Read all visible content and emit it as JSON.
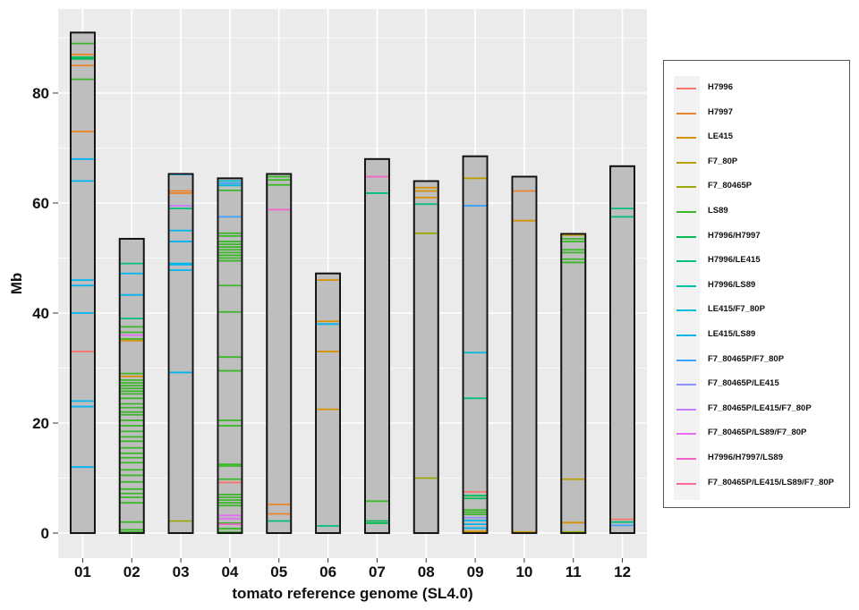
{
  "chart_data": {
    "type": "bar",
    "subtype": "chromosome-ideogram",
    "title": "",
    "xlabel": "tomato reference genome (SL4.0)",
    "ylabel": "Mb",
    "ylim": [
      -4.5,
      95.5
    ],
    "yticks": [
      0,
      20,
      40,
      60,
      80
    ],
    "grid": true,
    "legend_position": "right",
    "categories": [
      "01",
      "02",
      "03",
      "04",
      "05",
      "06",
      "07",
      "08",
      "09",
      "10",
      "11",
      "12"
    ],
    "chromosome_lengths": [
      91.0,
      53.5,
      65.3,
      64.5,
      65.3,
      47.2,
      68.0,
      64.0,
      68.5,
      64.8,
      54.4,
      66.7
    ],
    "legend": [
      {
        "name": "H7996",
        "color": "#F8766D"
      },
      {
        "name": "H7997",
        "color": "#E9842C"
      },
      {
        "name": "LE415",
        "color": "#D69100"
      },
      {
        "name": "F7_80P",
        "color": "#BC9D00"
      },
      {
        "name": "F7_80465P",
        "color": "#9CA700"
      },
      {
        "name": "LS89",
        "color": "#3CB72A"
      },
      {
        "name": "H7996/H7997",
        "color": "#00BA54"
      },
      {
        "name": "H7996/LE415",
        "color": "#00BE7D"
      },
      {
        "name": "H7996/LS89",
        "color": "#00C0A7"
      },
      {
        "name": "LE415/F7_80P",
        "color": "#00BCD8"
      },
      {
        "name": "LE415/LS89",
        "color": "#00B4EF"
      },
      {
        "name": "F7_80465P/F7_80P",
        "color": "#3DA1FF"
      },
      {
        "name": "F7_80465P/LE415",
        "color": "#8B93FF"
      },
      {
        "name": "F7_80465P/LE415/F7_80P",
        "color": "#C77CFF"
      },
      {
        "name": "F7_80465P/LS89/F7_80P",
        "color": "#E76BF3"
      },
      {
        "name": "H7996/H7997/LS89",
        "color": "#F264C7"
      },
      {
        "name": "F7_80465P/LE415/LS89/F7_80P",
        "color": "#FF6A98"
      }
    ],
    "markers": [
      {
        "chr": "01",
        "group": "LS89",
        "pos": [
          89.0,
          82.5
        ]
      },
      {
        "chr": "01",
        "group": "H7996/H7997",
        "pos": [
          86.5,
          86.2
        ]
      },
      {
        "chr": "01",
        "group": "H7997",
        "pos": [
          87.0,
          85.0,
          73.0
        ]
      },
      {
        "chr": "01",
        "group": "LE415/LS89",
        "pos": [
          68.0,
          64.0,
          46.0,
          45.0,
          40.0,
          24.0,
          23.0,
          12.0
        ]
      },
      {
        "chr": "01",
        "group": "H7996",
        "pos": [
          33.0
        ]
      },
      {
        "chr": "02",
        "group": "H7996/LE415",
        "pos": [
          49.0,
          39.0
        ]
      },
      {
        "chr": "02",
        "group": "LE415/LS89",
        "pos": [
          47.2,
          43.3
        ]
      },
      {
        "chr": "02",
        "group": "LS89",
        "pos": [
          37.5,
          36.5,
          35.3,
          29.0,
          27.8,
          27.3,
          26.8,
          26.3,
          25.8,
          25.3,
          24.5,
          23.5,
          22.8,
          22.0,
          21.5,
          20.5,
          19.5,
          18.5,
          17.5,
          16.7,
          15.5,
          14.5,
          13.7,
          12.8,
          11.5,
          10.5,
          9.3,
          8.0,
          7.2,
          6.5,
          5.5,
          2.0,
          0.6,
          0.2
        ]
      },
      {
        "chr": "02",
        "group": "F7_80465P/LS89/F7_80P",
        "pos": [
          36.0
        ]
      },
      {
        "chr": "02",
        "group": "LE415",
        "pos": [
          35.0,
          28.5
        ]
      },
      {
        "chr": "03",
        "group": "LE415/LS89",
        "pos": [
          65.2,
          55.0,
          53.0,
          49.0,
          48.8,
          47.8,
          29.2
        ]
      },
      {
        "chr": "03",
        "group": "H7997",
        "pos": [
          62.2,
          61.8
        ]
      },
      {
        "chr": "03",
        "group": "F7_80465P/LE415/F7_80P",
        "pos": [
          59.5
        ]
      },
      {
        "chr": "03",
        "group": "H7996/LE415",
        "pos": [
          59.0
        ]
      },
      {
        "chr": "03",
        "group": "F7_80465P",
        "pos": [
          2.2
        ]
      },
      {
        "chr": "04",
        "group": "LE415/F7_80P",
        "pos": [
          64.0,
          63.2
        ]
      },
      {
        "chr": "04",
        "group": "F7_80465P/F7_80P",
        "pos": [
          63.6,
          57.5
        ]
      },
      {
        "chr": "04",
        "group": "LS89",
        "pos": [
          62.3,
          54.5,
          54.0,
          53.0,
          52.5,
          52.0,
          51.5,
          51.0,
          50.5,
          50.0,
          49.5,
          45.0,
          40.2,
          32.0,
          29.5,
          20.5,
          19.5,
          12.5,
          12.2,
          9.8,
          7.0,
          6.5,
          6.0,
          5.5,
          5.0,
          1.8,
          0.8,
          0.2
        ]
      },
      {
        "chr": "04",
        "group": "H7996",
        "pos": [
          9.2
        ]
      },
      {
        "chr": "04",
        "group": "F7_80465P/LS89/F7_80P",
        "pos": [
          3.2,
          2.6
        ]
      },
      {
        "chr": "04",
        "group": "H7996/H7997/LS89",
        "pos": [
          1.6
        ]
      },
      {
        "chr": "05",
        "group": "LS89",
        "pos": [
          64.8,
          64.2,
          63.3
        ]
      },
      {
        "chr": "05",
        "group": "H7996/H7997/LS89",
        "pos": [
          58.8
        ]
      },
      {
        "chr": "05",
        "group": "H7997",
        "pos": [
          5.2,
          3.5
        ]
      },
      {
        "chr": "05",
        "group": "H7996/LE415",
        "pos": [
          2.2
        ]
      },
      {
        "chr": "06",
        "group": "LE415",
        "pos": [
          46.0,
          38.5,
          33.0,
          22.5
        ]
      },
      {
        "chr": "06",
        "group": "LE415/LS89",
        "pos": [
          38.0
        ]
      },
      {
        "chr": "06",
        "group": "H7996/LE415",
        "pos": [
          1.3
        ]
      },
      {
        "chr": "07",
        "group": "H7996/H7997/LS89",
        "pos": [
          64.8
        ]
      },
      {
        "chr": "07",
        "group": "H7996/LE415",
        "pos": [
          61.8
        ]
      },
      {
        "chr": "07",
        "group": "LS89",
        "pos": [
          5.8
        ]
      },
      {
        "chr": "07",
        "group": "H7996/H7997",
        "pos": [
          2.2,
          1.8
        ]
      },
      {
        "chr": "08",
        "group": "LE415",
        "pos": [
          62.8,
          62.2,
          61.0
        ]
      },
      {
        "chr": "08",
        "group": "H7996/LE415",
        "pos": [
          59.8
        ]
      },
      {
        "chr": "08",
        "group": "F7_80465P",
        "pos": [
          54.5,
          10.0
        ]
      },
      {
        "chr": "09",
        "group": "F7_80P",
        "pos": [
          64.5
        ]
      },
      {
        "chr": "09",
        "group": "F7_80465P/F7_80P",
        "pos": [
          59.5
        ]
      },
      {
        "chr": "09",
        "group": "LE415/F7_80P",
        "pos": [
          32.8
        ]
      },
      {
        "chr": "09",
        "group": "H7996/LE415",
        "pos": [
          24.5
        ]
      },
      {
        "chr": "09",
        "group": "H7996",
        "pos": [
          7.5
        ]
      },
      {
        "chr": "09",
        "group": "H7996/H7997",
        "pos": [
          6.8,
          6.3
        ]
      },
      {
        "chr": "09",
        "group": "LS89",
        "pos": [
          4.2,
          3.8,
          3.4
        ]
      },
      {
        "chr": "09",
        "group": "F7_80465P/LE415",
        "pos": [
          2.8
        ]
      },
      {
        "chr": "09",
        "group": "LE415/LS89",
        "pos": [
          2.3,
          1.6,
          0.9
        ]
      },
      {
        "chr": "09",
        "group": "LE415",
        "pos": [
          0.3
        ]
      },
      {
        "chr": "10",
        "group": "H7997",
        "pos": [
          62.2
        ]
      },
      {
        "chr": "10",
        "group": "LE415",
        "pos": [
          56.8,
          0.2
        ]
      },
      {
        "chr": "11",
        "group": "F7_80P",
        "pos": [
          54.2
        ]
      },
      {
        "chr": "11",
        "group": "LS89",
        "pos": [
          53.5,
          53.0,
          51.5,
          51.0,
          49.8,
          49.2
        ]
      },
      {
        "chr": "11",
        "group": "F7_80P",
        "pos": [
          9.8
        ]
      },
      {
        "chr": "11",
        "group": "LE415",
        "pos": [
          1.9
        ]
      },
      {
        "chr": "11",
        "group": "F7_80465P",
        "pos": [
          0.2
        ]
      },
      {
        "chr": "12",
        "group": "H7996/LE415",
        "pos": [
          59.0,
          57.5
        ]
      },
      {
        "chr": "12",
        "group": "H7996",
        "pos": [
          2.5
        ]
      },
      {
        "chr": "12",
        "group": "H7996/LE415",
        "pos": [
          2.0
        ]
      },
      {
        "chr": "12",
        "group": "F7_80465P/F7_80P",
        "pos": [
          1.4
        ]
      }
    ]
  }
}
